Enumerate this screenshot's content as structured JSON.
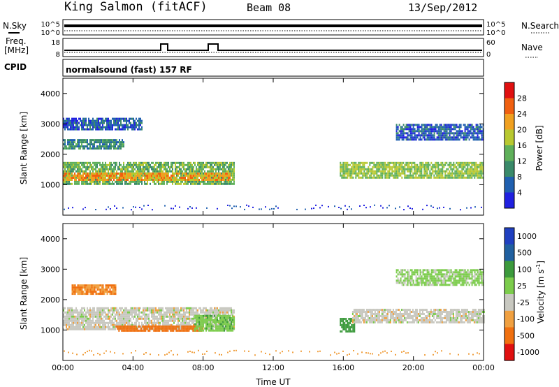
{
  "header": {
    "station": "King Salmon (fitACF)",
    "beam": "Beam 08",
    "date": "13/Sep/2012"
  },
  "status_panels": {
    "nsky_label": "N.Sky",
    "nsearch_label": "N.Search",
    "freq_label_line1": "Freq.",
    "freq_label_line2": "[MHz]",
    "nave_label": "Nave",
    "cpid_label": "CPID",
    "cpid_value": "normalsound (fast) 157 RF",
    "nsky_ticks": [
      "10^5",
      "10^0"
    ],
    "nsearch_ticks": [
      "10^5",
      "10^0"
    ],
    "freq_ticks": [
      "18",
      "8"
    ],
    "nave_ticks": [
      "60",
      "0"
    ]
  },
  "chart_data": [
    {
      "type": "heatmap",
      "panel": "power",
      "ylabel": "Slant Range [km]",
      "xlabel": "",
      "xlim": [
        0,
        24
      ],
      "ylim": [
        0,
        4500
      ],
      "yticks": [
        1000,
        2000,
        3000,
        4000
      ],
      "colorbar_label": "Power [dB]",
      "colorbar_ticks": [
        4,
        8,
        12,
        16,
        20,
        24,
        28
      ],
      "colorbar_colors": [
        "#2020e0",
        "#2060b0",
        "#3a8a6a",
        "#5fb05a",
        "#b8c830",
        "#f0a020",
        "#f06010",
        "#e01010"
      ],
      "echo_regions": [
        {
          "t_start": 0.0,
          "t_end": 9.8,
          "range_low": 1000,
          "range_high": 1750,
          "power_db": 14
        },
        {
          "t_start": 0.0,
          "t_end": 9.5,
          "range_low": 1150,
          "range_high": 1400,
          "power_db": 22
        },
        {
          "t_start": 0.0,
          "t_end": 3.5,
          "range_low": 2200,
          "range_high": 2500,
          "power_db": 10
        },
        {
          "t_start": 0.0,
          "t_end": 4.5,
          "range_low": 2800,
          "range_high": 3200,
          "power_db": 6
        },
        {
          "t_start": 15.8,
          "t_end": 24.0,
          "range_low": 1200,
          "range_high": 1750,
          "power_db": 16
        },
        {
          "t_start": 19.0,
          "t_end": 24.0,
          "range_low": 2500,
          "range_high": 3000,
          "power_db": 6
        }
      ]
    },
    {
      "type": "heatmap",
      "panel": "velocity",
      "ylabel": "Slant Range [km]",
      "xlabel": "Time UT",
      "xlim": [
        0,
        24
      ],
      "ylim": [
        0,
        4500
      ],
      "xtick_labels": [
        "00:00",
        "04:00",
        "08:00",
        "12:00",
        "16:00",
        "20:00",
        "00:00"
      ],
      "yticks": [
        1000,
        2000,
        3000,
        4000
      ],
      "colorbar_label": "Velocity [m s",
      "colorbar_label_sup": "-1",
      "colorbar_label_end": "]",
      "colorbar_ticks": [
        "1000",
        "500",
        "100",
        "25",
        "-25",
        "-100",
        "-500",
        "-1000"
      ],
      "colorbar_colors": [
        "#2040c0",
        "#2060a0",
        "#3c9a3c",
        "#7ccc4c",
        "#c8c8c0",
        "#f0a040",
        "#f07010",
        "#e01010"
      ],
      "echo_regions": [
        {
          "t_start": 0.0,
          "t_end": 9.8,
          "range_low": 1050,
          "range_high": 1750,
          "velocity": 0
        },
        {
          "t_start": 3.0,
          "t_end": 8.0,
          "range_low": 950,
          "range_high": 1150,
          "velocity": -150
        },
        {
          "t_start": 7.5,
          "t_end": 9.8,
          "range_low": 1000,
          "range_high": 1500,
          "velocity": 80
        },
        {
          "t_start": 0.5,
          "t_end": 3.0,
          "range_low": 2200,
          "range_high": 2500,
          "velocity": -100
        },
        {
          "t_start": 15.8,
          "t_end": 16.6,
          "range_low": 950,
          "range_high": 1400,
          "velocity": 150
        },
        {
          "t_start": 16.5,
          "t_end": 24.0,
          "range_low": 1250,
          "range_high": 1700,
          "velocity": 0
        },
        {
          "t_start": 19.0,
          "t_end": 24.0,
          "range_low": 2500,
          "range_high": 3000,
          "velocity": 40
        }
      ]
    }
  ]
}
